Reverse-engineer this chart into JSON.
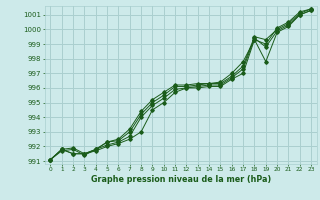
{
  "title": "Graphe pression niveau de la mer (hPa)",
  "bg_color": "#cdeaea",
  "grid_color": "#aacfcf",
  "line_color": "#1a5c1a",
  "xlim": [
    -0.5,
    23.5
  ],
  "ylim": [
    990.8,
    1001.6
  ],
  "yticks": [
    991,
    992,
    993,
    994,
    995,
    996,
    997,
    998,
    999,
    1000,
    1001
  ],
  "xticks": [
    0,
    1,
    2,
    3,
    4,
    5,
    6,
    7,
    8,
    9,
    10,
    11,
    12,
    13,
    14,
    15,
    16,
    17,
    18,
    19,
    20,
    21,
    22,
    23
  ],
  "series": [
    [
      991.1,
      991.8,
      991.9,
      991.5,
      991.7,
      992.0,
      992.2,
      992.5,
      993.0,
      994.5,
      995.0,
      995.7,
      996.0,
      996.0,
      996.1,
      996.1,
      996.6,
      997.0,
      999.3,
      997.8,
      999.8,
      1000.2,
      1001.0,
      1001.3
    ],
    [
      991.1,
      991.7,
      991.8,
      991.4,
      991.8,
      992.1,
      992.3,
      992.7,
      994.0,
      994.8,
      995.3,
      995.9,
      996.0,
      996.1,
      996.2,
      996.2,
      996.7,
      997.3,
      999.4,
      998.8,
      999.9,
      1000.3,
      1001.0,
      1001.3
    ],
    [
      991.1,
      991.8,
      991.5,
      991.5,
      991.8,
      992.3,
      992.4,
      993.0,
      994.2,
      995.0,
      995.5,
      996.1,
      996.1,
      996.2,
      996.3,
      996.3,
      996.8,
      997.5,
      999.5,
      999.3,
      1000.0,
      1000.4,
      1001.1,
      1001.4
    ],
    [
      991.1,
      991.8,
      991.5,
      991.5,
      991.8,
      992.3,
      992.5,
      993.2,
      994.4,
      995.2,
      995.7,
      996.2,
      996.2,
      996.3,
      996.3,
      996.4,
      997.0,
      997.8,
      999.3,
      999.0,
      1000.1,
      1000.5,
      1001.2,
      1001.4
    ]
  ]
}
